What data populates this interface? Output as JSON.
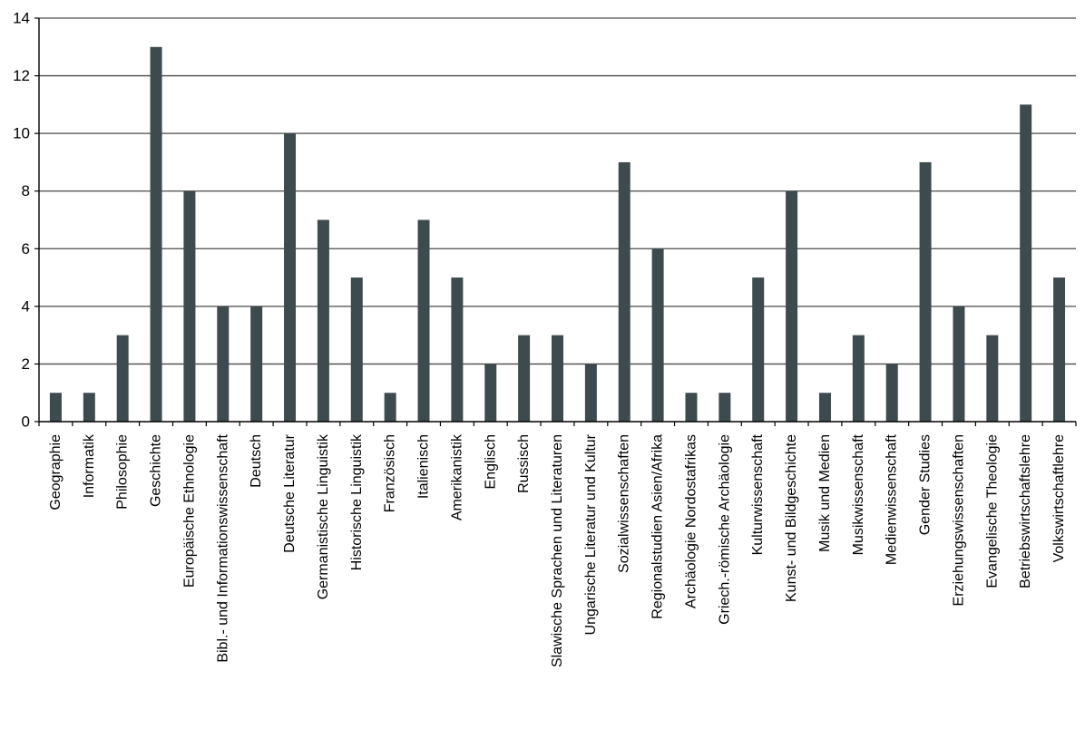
{
  "chart_data": {
    "type": "bar",
    "title": "",
    "xlabel": "",
    "ylabel": "",
    "ylim": [
      0,
      14
    ],
    "y_ticks": [
      0,
      2,
      4,
      6,
      8,
      10,
      12,
      14
    ],
    "grid": true,
    "legend": "none",
    "bar_color": "#3d4b4e",
    "categories": [
      "Geographie",
      "Informatik",
      "Philosophie",
      "Geschichte",
      "Europäische Ethnologie",
      "Bibl.- und Informationswissenschaft",
      "Deutsch",
      "Deutsche Literatur",
      "Germanistische Linguistik",
      "Historische Linguistik",
      "Französisch",
      "Italienisch",
      "Amerikanistik",
      "Englisch",
      "Russisch",
      "Slawische Sprachen und Literaturen",
      "Ungarische Literatur und Kultur",
      "Sozialwissenschaften",
      "Regionalstudien Asien/Afrika",
      "Archäologie Nordostafrikas",
      "Griech.-römische Archäologie",
      "Kulturwissenschaft",
      "Kunst- und Bildgeschichte",
      "Musik und Medien",
      "Musikwissenschaft",
      "Medienwissenschaft",
      "Gender Studies",
      "Erziehungswissenschaften",
      "Evangelische Theologie",
      "Betriebswirtschaftslehre",
      "Volkswirtschaftlehre"
    ],
    "values": [
      1,
      1,
      3,
      13,
      8,
      4,
      4,
      10,
      7,
      5,
      1,
      7,
      5,
      2,
      3,
      3,
      2,
      9,
      6,
      1,
      1,
      5,
      8,
      1,
      3,
      2,
      9,
      4,
      3,
      11,
      5
    ]
  }
}
